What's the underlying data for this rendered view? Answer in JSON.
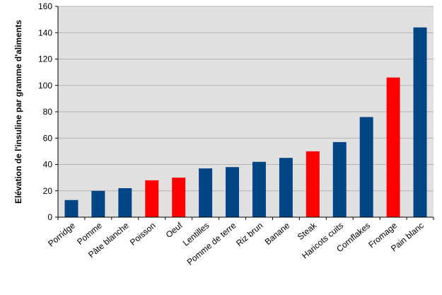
{
  "chart_data": {
    "type": "bar",
    "title": "",
    "xlabel": "",
    "ylabel": "Elévation de l'insuline par gramme d'aliments",
    "ylim": [
      0,
      160
    ],
    "yticks": [
      0,
      20,
      40,
      60,
      80,
      100,
      120,
      140,
      160
    ],
    "grid": true,
    "legend": "none",
    "colors": {
      "blue": "#004586",
      "red": "#ff0000",
      "plot_bg": "#e0e0e0",
      "grid": "#b3b3b3"
    },
    "categories": [
      "Porridge",
      "Pomme",
      "Pâte blanche",
      "Poisson",
      "Oeuf",
      "Lentilles",
      "Pomme de terre",
      "Riz brun",
      "Banane",
      "Steak",
      "Haricots cuits",
      "Cornflakes",
      "Fromage",
      "Pain blanc"
    ],
    "values": [
      13,
      20,
      22,
      28,
      30,
      37,
      38,
      42,
      45,
      50,
      57,
      76,
      106,
      144
    ],
    "bar_colors": [
      "blue",
      "blue",
      "blue",
      "red",
      "red",
      "blue",
      "blue",
      "blue",
      "blue",
      "red",
      "blue",
      "blue",
      "red",
      "blue"
    ]
  }
}
